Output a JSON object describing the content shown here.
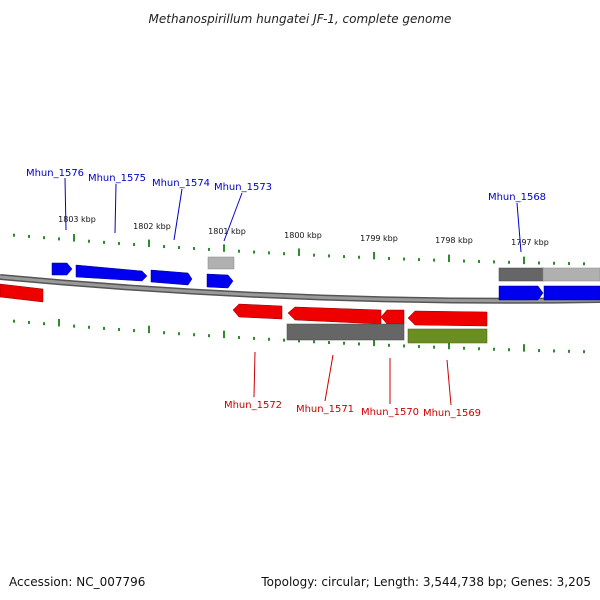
{
  "title": "Methanospirillum hungatei JF-1, complete genome",
  "footer": {
    "accession": "Accession: NC_007796",
    "summary": "Topology: circular; Length: 3,544,738 bp; Genes: 3,205"
  },
  "ruler": {
    "labels": [
      "1803 kbp",
      "1802 kbp",
      "1801 kbp",
      "1800 kbp",
      "1799 kbp",
      "1798 kbp",
      "1797 kbp"
    ]
  },
  "genes_forward": [
    {
      "label": "Mhun_1576"
    },
    {
      "label": "Mhun_1575"
    },
    {
      "label": "Mhun_1574"
    },
    {
      "label": "Mhun_1573"
    },
    {
      "label": "Mhun_1568"
    }
  ],
  "genes_reverse": [
    {
      "label": "Mhun_1572"
    },
    {
      "label": "Mhun_1571"
    },
    {
      "label": "Mhun_1570"
    },
    {
      "label": "Mhun_1569"
    }
  ],
  "colors": {
    "forward": "#0000ee",
    "reverse": "#ee0000",
    "dark_gray": "#666666",
    "light_gray": "#b0b0b0",
    "olive": "#6b8e23",
    "tick": "#2e8b2e",
    "backbone": "#888888"
  }
}
